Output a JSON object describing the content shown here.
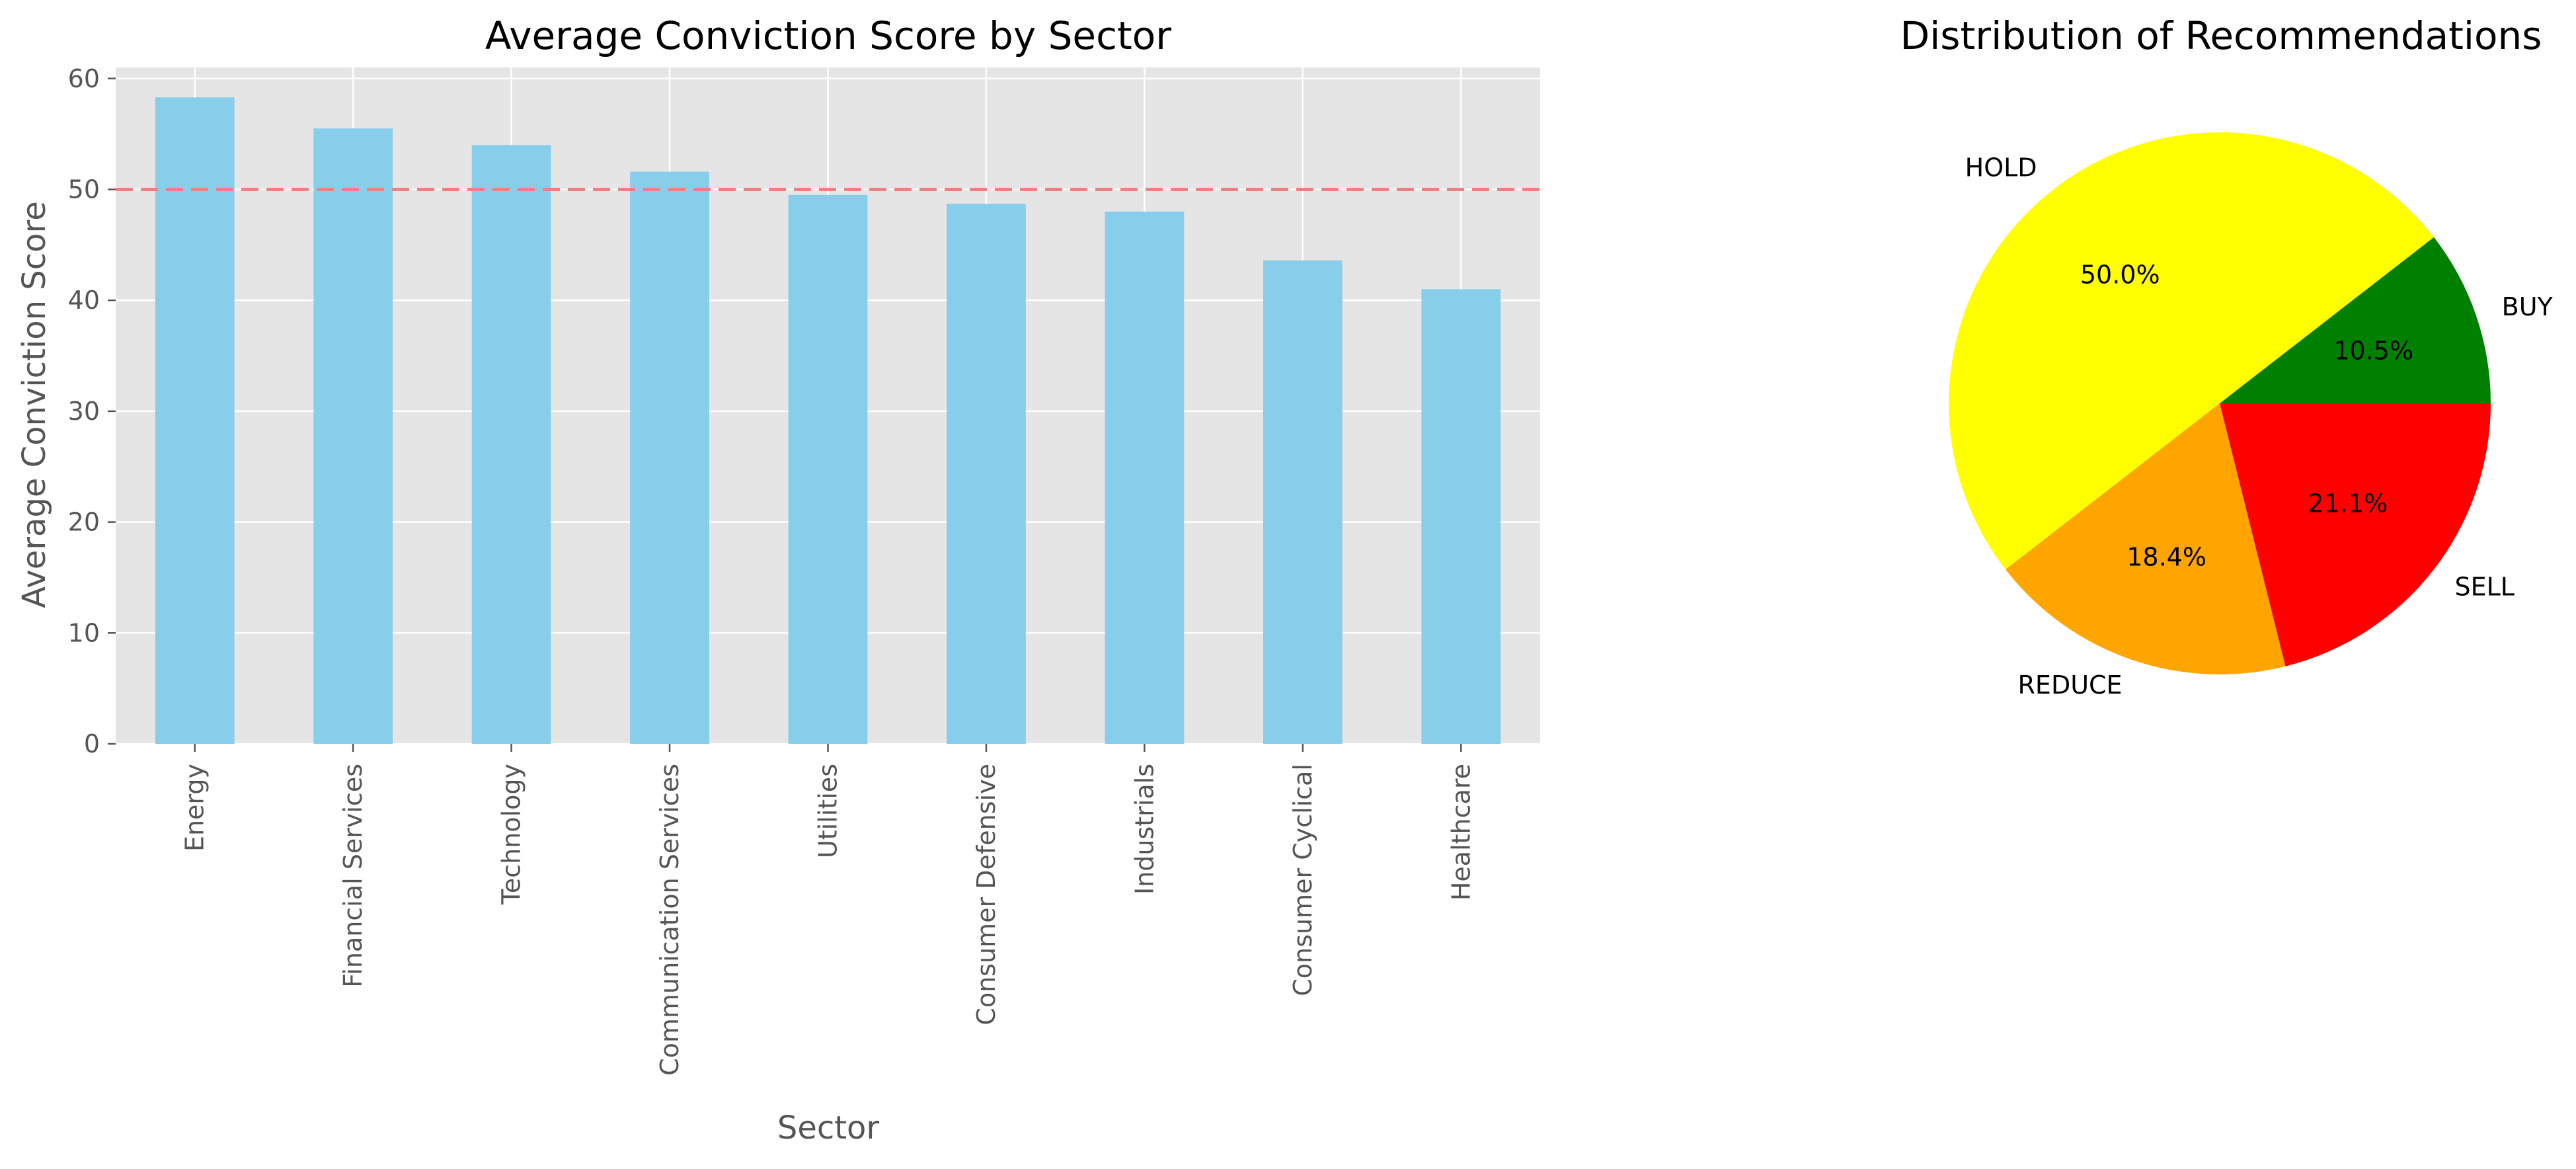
{
  "chart_data": [
    {
      "type": "bar",
      "title": "Average Conviction Score by Sector",
      "xlabel": "Sector",
      "ylabel": "Average Conviction Score",
      "categories": [
        "Energy",
        "Financial Services",
        "Technology",
        "Communication Services",
        "Utilities",
        "Consumer Defensive",
        "Industrials",
        "Consumer Cyclical",
        "Healthcare"
      ],
      "values": [
        58.3,
        55.5,
        54.0,
        51.6,
        49.5,
        48.7,
        48.0,
        43.6,
        41.0
      ],
      "ylim": [
        0,
        61
      ],
      "yticks": [
        0,
        10,
        20,
        30,
        40,
        50,
        60
      ],
      "reference_line": 50,
      "grid": true,
      "bar_color": "#87ceeb",
      "reference_line_color": "#f08080",
      "background_color": "#e5e5e5"
    },
    {
      "type": "pie",
      "title": "Distribution of Recommendations",
      "slices": [
        {
          "label": "BUY",
          "value": 10.5,
          "pct_label": "10.5%",
          "color": "#008000"
        },
        {
          "label": "HOLD",
          "value": 50.0,
          "pct_label": "50.0%",
          "color": "#ffff00"
        },
        {
          "label": "REDUCE",
          "value": 18.4,
          "pct_label": "18.4%",
          "color": "#ffa500"
        },
        {
          "label": "SELL",
          "value": 21.1,
          "pct_label": "21.1%",
          "color": "#ff0000"
        }
      ]
    }
  ]
}
